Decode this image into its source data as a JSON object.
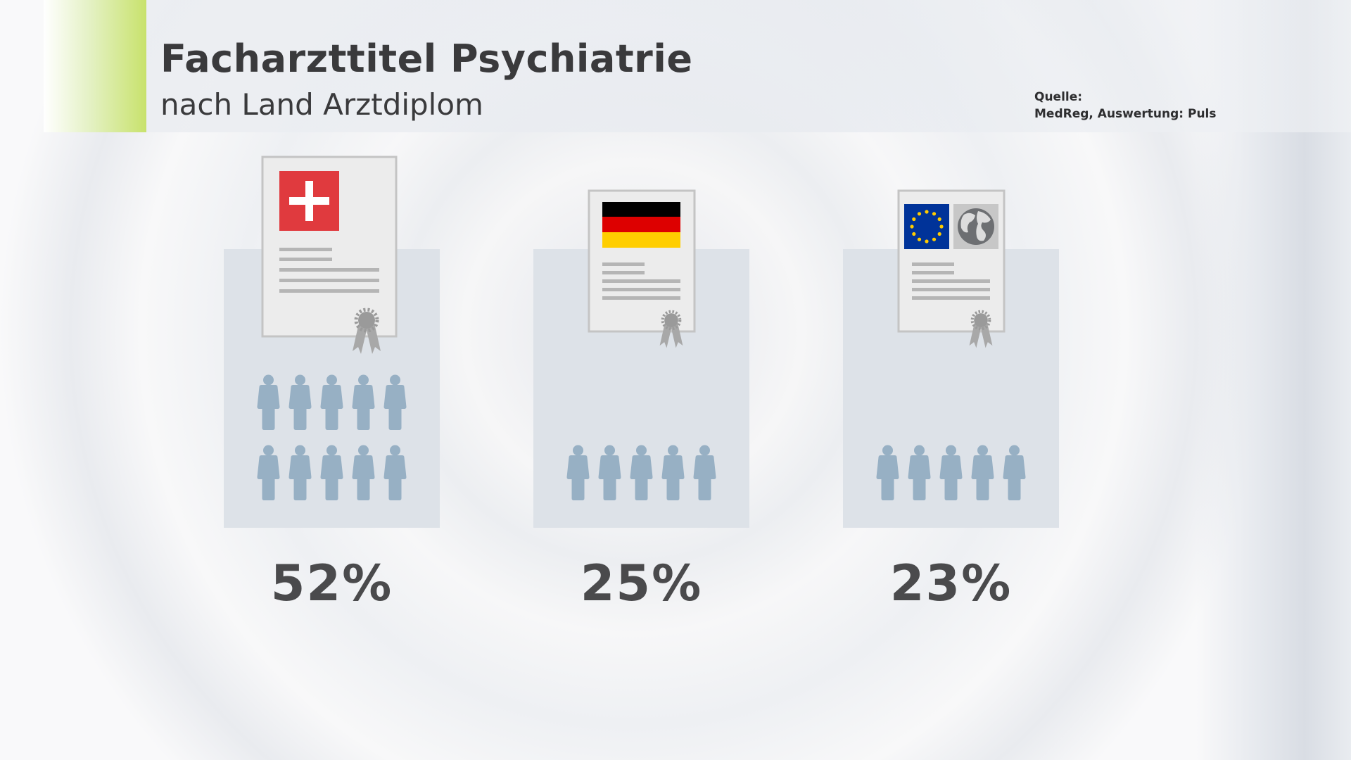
{
  "chart_data": {
    "type": "bar",
    "title": "Facharzttitel Psychiatrie",
    "subtitle": "nach Land Arztdiplom",
    "categories": [
      "Schweiz",
      "Deutschland",
      "EU / Welt"
    ],
    "values": [
      52,
      25,
      23
    ],
    "value_labels": [
      "52%",
      "25%",
      "23%"
    ],
    "unit": "%",
    "person_icons": [
      10,
      5,
      5
    ],
    "flag_icons": [
      "swiss-flag-icon",
      "german-flag-icon",
      "eu-flag-icon + globe-icon"
    ],
    "grid": false,
    "legend": "none"
  },
  "source": {
    "label": "Quelle:",
    "text": "MedReg, Auswertung: Puls"
  },
  "colors": {
    "accent": "#c8e26c",
    "panel": "#dde2e8",
    "person": "#97b0c4",
    "swiss_red": "#e03a3e",
    "german_black": "#000000",
    "german_red": "#dd0000",
    "german_gold": "#ffce00",
    "eu_blue": "#003399",
    "eu_star": "#ffcc00",
    "text": "#3a3a3c"
  }
}
